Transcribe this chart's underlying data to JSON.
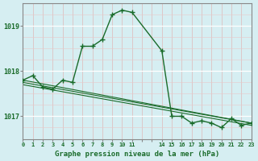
{
  "title": "Graphe pression niveau de la mer (hPa)",
  "bg_color": "#d6eef2",
  "line_color": "#1a6b2a",
  "xlim": [
    0,
    23
  ],
  "ylim": [
    1016.5,
    1019.5
  ],
  "yticks": [
    1017,
    1018,
    1019
  ],
  "series1_x": [
    0,
    1,
    2,
    3,
    4,
    5,
    6,
    7,
    8,
    9,
    10,
    11,
    14,
    15,
    16,
    17,
    18,
    19,
    20,
    21,
    22,
    23
  ],
  "series1_y": [
    1017.8,
    1017.9,
    1017.65,
    1017.6,
    1017.8,
    1017.75,
    1018.55,
    1018.55,
    1018.7,
    1019.25,
    1019.35,
    1019.3,
    1018.45,
    1017.0,
    1017.0,
    1016.85,
    1016.9,
    1016.85,
    1016.75,
    1016.95,
    1016.8,
    1016.85
  ],
  "series2_x": [
    0,
    23
  ],
  "series2_y": [
    1017.8,
    1016.85
  ],
  "series3_x": [
    0,
    23
  ],
  "series3_y": [
    1017.75,
    1016.85
  ],
  "series4_x": [
    0,
    23
  ],
  "series4_y": [
    1017.7,
    1016.8
  ]
}
